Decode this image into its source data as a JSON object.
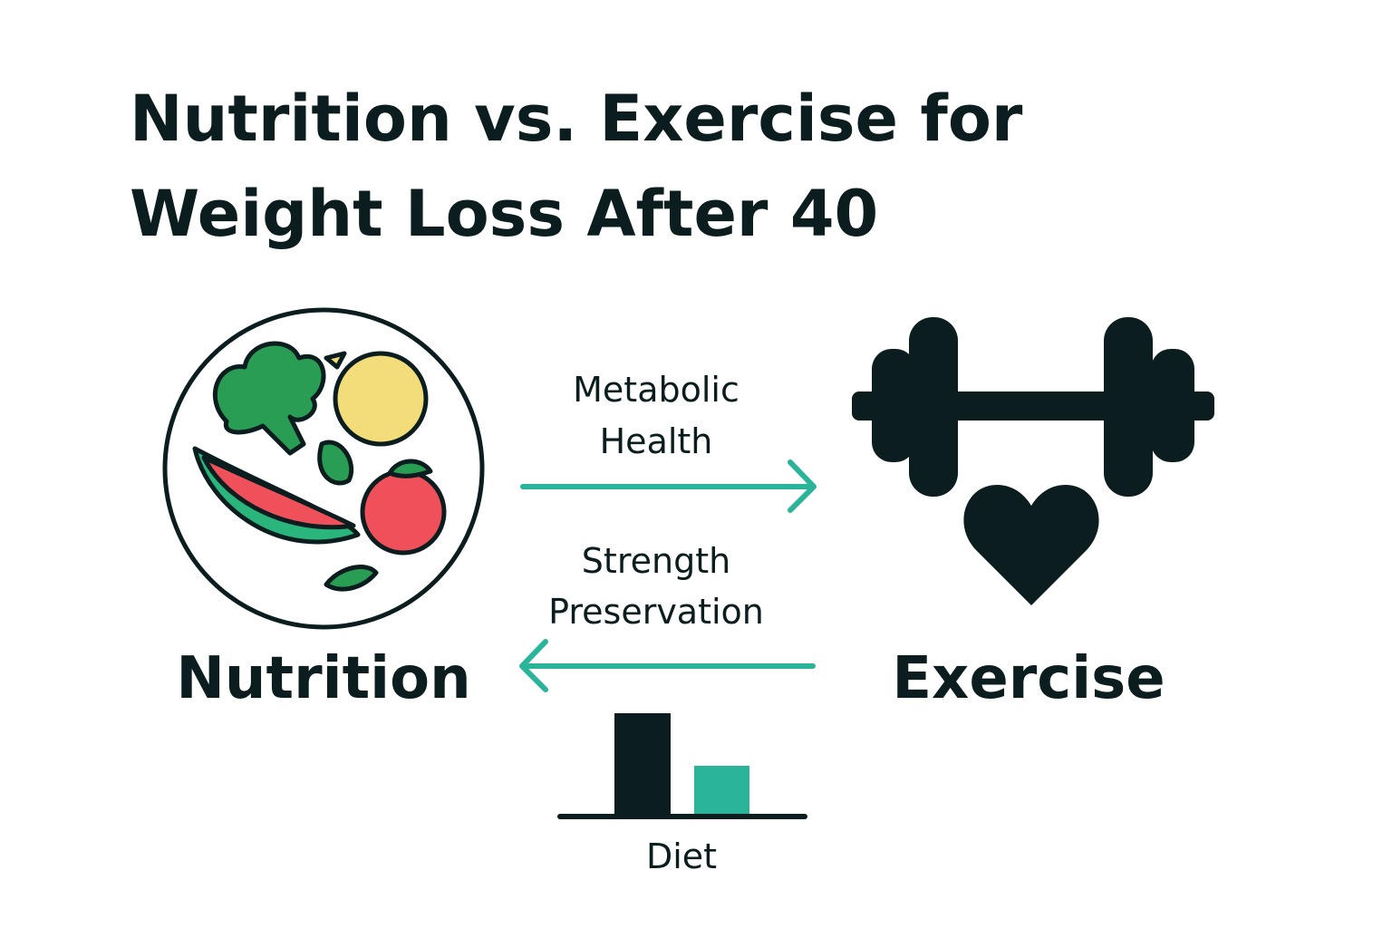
{
  "title": [
    "Nutrition vs. Exercise for",
    "Weight Loss After 40"
  ],
  "nodes": [
    {
      "label": "Nutrition"
    },
    {
      "label": "Exercise"
    }
  ],
  "edges": [
    {
      "label": [
        "Metabolic",
        "Health"
      ]
    },
    {
      "label": [
        "Strength",
        "Preservation"
      ]
    }
  ],
  "chart_icon": {
    "label": "Diet"
  }
}
